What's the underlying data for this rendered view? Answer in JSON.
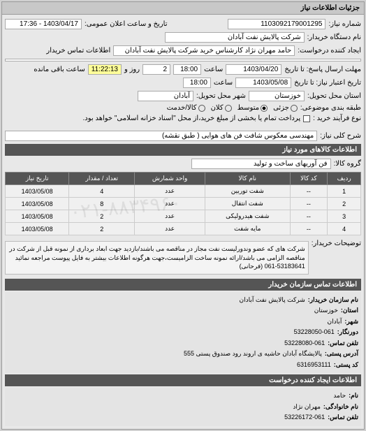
{
  "panel": {
    "title": "جزئیات اطلاعات نیاز"
  },
  "header": {
    "req_no_label": "شماره نیاز:",
    "req_no": "1103092179001295",
    "announce_label": "تاریخ و ساعت اعلان عمومی:",
    "announce_val": "1403/04/17 - 17:36",
    "buyer_name_label": "نام دستگاه خریدار:",
    "buyer_name": "شرکت پالایش نفت آبادان",
    "creator_label": "ایجاد کننده درخواست:",
    "creator": "حامد مهران نژاد کارشناس خرید شرکت پالایش نفت آبادان",
    "contact_label": "اطلاعات تماس خریدار",
    "contact_val": "",
    "deadline_label": "مهلت ارسال پاسخ: تا تاریخ",
    "deadline_date": "1403/04/20",
    "saat1": "ساعت",
    "deadline_time": "18:00",
    "days_remain": "2",
    "days_label": "روز و",
    "time_remain": "11:22:13",
    "remain_label": "ساعت باقی مانده",
    "valid_label": "تاریخ اعتبار نیاز: تا تاریخ",
    "valid_date": "1403/05/08",
    "saat2": "ساعت",
    "valid_time": "18:00",
    "province_label": "استان محل تحویل:",
    "province": "خوزستان",
    "city_label": "شهر محل تحویل:",
    "city": "آبادان",
    "budget_label": "طبقه بندی موضوعی:",
    "budget_opts": [
      "جزئی",
      "متوسط",
      "کلان",
      "کالا/خدمت"
    ],
    "budget_checked": 1,
    "process_label": "نوع فرآیند خرید :",
    "process_chk_label": "پرداخت تمام یا بخشی از مبلغ خرید،از محل \"اسناد خزانه اسلامی\" خواهد بود.",
    "process_checked": false
  },
  "desc": {
    "title_label": "شرح کلی نیاز:",
    "title_val": "مهندسی معکوس شافت فن های هوایی ( طبق نقشه)"
  },
  "goods": {
    "section_title": "اطلاعات کالاهای مورد نیاز",
    "group_label": "گروه کالا:",
    "group_val": "فن آوریهای ساخت و تولید",
    "columns": [
      "ردیف",
      "کد کالا",
      "نام کالا",
      "واحد شمارش",
      "تعداد / مقدار",
      "تاریخ نیاز"
    ],
    "rows": [
      [
        "1",
        "--",
        "شفت توربین",
        "عدد",
        "4",
        "1403/05/08"
      ],
      [
        "2",
        "--",
        "شفت انتقال",
        "عدد",
        "8",
        "1403/05/08"
      ],
      [
        "3",
        "--",
        "شفت هیدرولیکی",
        "عدد",
        "2",
        "1403/05/08"
      ],
      [
        "4",
        "--",
        "مایه شفت",
        "عدد",
        "2",
        "1403/05/08"
      ]
    ]
  },
  "notes": {
    "label": "توضیحات خریدار:",
    "text": "شرکت های که عضو وندورلیست نفت مجاز در مناقصه می باشند/بازدید جهت ابعاد برداری از نمونه قبل از شرکت در مناقصه الزامی می باشد/ارائه نمونه ساخت الزامیست،جهت هرگونه اطلاعات بیشتر به فایل پیوست مراجعه نمائید 53183641-061 (فرحانی)"
  },
  "contact": {
    "section_title": "اطلاعات تماس سازمان خریدار",
    "org_label": "نام سازمان خریدار:",
    "org": "شرکت پالایش نفت آبادان",
    "prov_label": "استان:",
    "prov": "خوزستان",
    "city_label": "شهر:",
    "city": "آبادان",
    "fax_label": "دورنگار:",
    "fax": "53228050-061",
    "tel_label": "تلفن تماس:",
    "tel": "53228080-061",
    "addr_label": "آدرس پستی:",
    "addr": "پالایشگاه آبادان حاشیه ی اروند رود صندوق پستی 555",
    "post_label": "کد پستی:",
    "post": "6316953111",
    "creator_section": "اطلاعات ایجاد کننده درخواست",
    "name_label": "نام:",
    "name": "حامد",
    "family_label": "نام خانوادگی:",
    "family": "مهران نژاد",
    "phone_label": "تلفن تماس:",
    "phone": "53226172-061"
  },
  "watermark": "۰۲۱-۸۸۳۴۹۶۰"
}
